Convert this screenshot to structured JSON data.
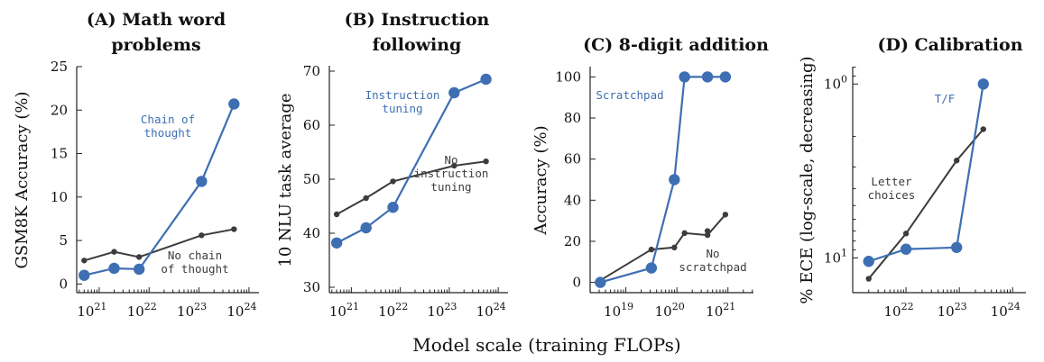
{
  "figure": {
    "xlabel": "Model scale (training FLOPs)",
    "colors": {
      "blue": "#3e6fb3",
      "gray": "#3c3c3c"
    }
  },
  "chart_data": [
    {
      "id": "A",
      "type": "line",
      "title_lines": [
        "(A) Math word",
        "problems"
      ],
      "ylabel": "GSM8K Accuracy (%)",
      "xscale": "log",
      "xlim_log10": [
        20.55,
        24.2
      ],
      "ylim": [
        -1,
        25
      ],
      "yticks": [
        0,
        5,
        10,
        15,
        20,
        25
      ],
      "xtick_exps": [
        21,
        22,
        23,
        24
      ],
      "xtick_labels": [
        "10",
        "10",
        "10",
        "10"
      ],
      "xtick_sup": [
        "21",
        "22",
        "23",
        "24"
      ],
      "series": [
        {
          "name": "Chain of thought",
          "color": "blue",
          "x_log10": [
            20.7,
            21.3,
            21.8,
            23.05,
            23.7
          ],
          "values": [
            1.0,
            1.8,
            1.7,
            11.8,
            20.7
          ]
        },
        {
          "name": "No chain of thought",
          "color": "gray",
          "x_log10": [
            20.7,
            21.3,
            21.8,
            23.05,
            23.7
          ],
          "values": [
            2.7,
            3.7,
            3.1,
            5.6,
            6.3
          ]
        }
      ],
      "annotations": [
        {
          "lines": [
            "Chain of",
            "thought"
          ],
          "color": "blue"
        },
        {
          "lines": [
            "No chain",
            "of thought"
          ],
          "color": "gray"
        }
      ]
    },
    {
      "id": "B",
      "type": "line",
      "title_lines": [
        "(B) Instruction",
        "following"
      ],
      "ylabel": "10 NLU task average",
      "xscale": "log",
      "xlim_log10": [
        20.55,
        24.2
      ],
      "ylim": [
        29,
        71
      ],
      "yticks": [
        30,
        40,
        50,
        60,
        70
      ],
      "xtick_exps": [
        21,
        22,
        23,
        24
      ],
      "xtick_labels": [
        "10",
        "10",
        "10",
        "10"
      ],
      "xtick_sup": [
        "21",
        "22",
        "23",
        "24"
      ],
      "series": [
        {
          "name": "Instruction tuning",
          "color": "blue",
          "x_log10": [
            20.7,
            21.3,
            21.85,
            23.1,
            23.75
          ],
          "values": [
            38.2,
            41.0,
            44.8,
            66.0,
            68.5
          ]
        },
        {
          "name": "No instruction tuning",
          "color": "gray",
          "x_log10": [
            20.7,
            21.3,
            21.85,
            23.1,
            23.75
          ],
          "values": [
            43.5,
            46.5,
            49.6,
            52.5,
            53.3
          ]
        }
      ],
      "annotations": [
        {
          "lines": [
            "Instruction",
            "tuning"
          ],
          "color": "blue"
        },
        {
          "lines": [
            "No",
            "instruction",
            "tuning"
          ],
          "color": "gray"
        }
      ]
    },
    {
      "id": "C",
      "type": "line",
      "title_lines": [
        "(C) 8-digit addition"
      ],
      "ylabel": "Accuracy (%)",
      "xscale": "log",
      "xlim_log10": [
        18.3,
        21.5
      ],
      "ylim": [
        -5,
        105
      ],
      "yticks": [
        0,
        20,
        40,
        60,
        80,
        100
      ],
      "xtick_exps": [
        19,
        20,
        21
      ],
      "xtick_labels": [
        "10",
        "10",
        "10"
      ],
      "xtick_sup": [
        "19",
        "20",
        "21"
      ],
      "series": [
        {
          "name": "Scratchpad",
          "color": "blue",
          "x_log10": [
            18.5,
            19.5,
            19.95,
            20.15,
            20.6,
            20.95
          ],
          "values": [
            0,
            7,
            50,
            100,
            100,
            100
          ]
        },
        {
          "name": "No scratchpad",
          "color": "gray",
          "x_log10": [
            18.5,
            19.5,
            19.95,
            20.15,
            20.6,
            20.95
          ],
          "values": [
            1,
            16,
            17,
            24,
            23,
            33
          ]
        }
      ],
      "extra_gray_point": {
        "x_log10": 20.6,
        "value": 25
      },
      "annotations": [
        {
          "lines": [
            "Scratchpad"
          ],
          "color": "blue"
        },
        {
          "lines": [
            "No",
            "scratchpad"
          ],
          "color": "gray"
        }
      ]
    },
    {
      "id": "D",
      "type": "line",
      "title_lines": [
        "(D) Calibration"
      ],
      "ylabel": "% ECE (log-scale, decreasing)",
      "xscale": "log",
      "yscale": "log-inverted",
      "xlim_log10": [
        21.0,
        24.25
      ],
      "ylim_log10_inverted": [
        -0.1,
        1.2
      ],
      "ytick_labels": [
        "10",
        "10"
      ],
      "ytick_sup": [
        "0",
        "1"
      ],
      "ytick_exps": [
        0,
        1
      ],
      "xtick_exps": [
        22,
        23,
        24
      ],
      "xtick_labels": [
        "10",
        "10",
        "10"
      ],
      "xtick_sup": [
        "22",
        "23",
        "24"
      ],
      "series": [
        {
          "name": "T/F",
          "color": "blue",
          "x_log10": [
            21.3,
            22.0,
            22.95,
            23.45
          ],
          "y_log10": [
            1.02,
            0.95,
            0.94,
            0.0
          ]
        },
        {
          "name": "Letter choices",
          "color": "gray",
          "x_log10": [
            21.3,
            22.0,
            22.95,
            23.45
          ],
          "y_log10": [
            1.12,
            0.86,
            0.44,
            0.26
          ]
        }
      ],
      "annotations": [
        {
          "lines": [
            "T/F"
          ],
          "color": "blue"
        },
        {
          "lines": [
            "Letter",
            "choices"
          ],
          "color": "gray"
        }
      ]
    }
  ]
}
